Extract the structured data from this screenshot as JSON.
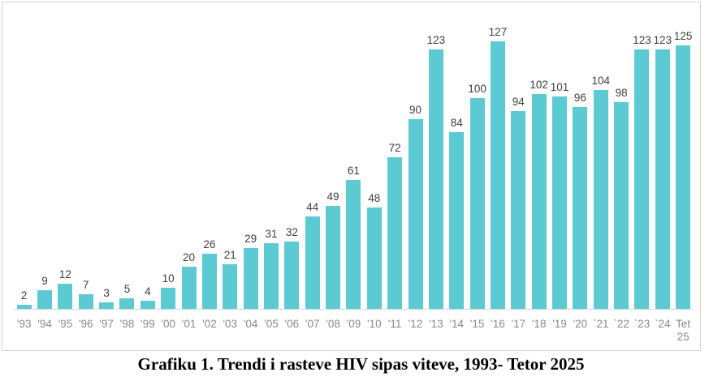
{
  "chart_data": {
    "type": "bar",
    "title": "Grafiku 1. Trendi i rasteve HIV sipas viteve, 1993- Tetor 2025",
    "categories": [
      "'93",
      "'94",
      "'95",
      "'96",
      "'97",
      "'98",
      "'99",
      "'00",
      "'01",
      "'02",
      "'03",
      "'04",
      "'05",
      "'06",
      "'07",
      "'08",
      "'09",
      "'10",
      "'11",
      "'12",
      "'13",
      "'14",
      "'15",
      "'16",
      "'17",
      "'18",
      "'19",
      "'20",
      "`21",
      "`22",
      "`23",
      "`24",
      "Tet 25"
    ],
    "values": [
      2,
      9,
      12,
      7,
      3,
      5,
      4,
      10,
      20,
      26,
      21,
      29,
      31,
      32,
      44,
      49,
      61,
      48,
      72,
      90,
      123,
      84,
      100,
      127,
      94,
      102,
      101,
      96,
      104,
      98,
      123,
      123,
      125
    ],
    "xlabel": "",
    "ylabel": "",
    "data_labels": true,
    "legend": false,
    "gridlines": false,
    "bar_color": "#5BCAD2",
    "data_label_color": "#3F3F3F",
    "axis_label_color": "#8A8A8A",
    "axis_line_color": "#D9D9D9",
    "box_border_color": "#D3D3D3"
  }
}
